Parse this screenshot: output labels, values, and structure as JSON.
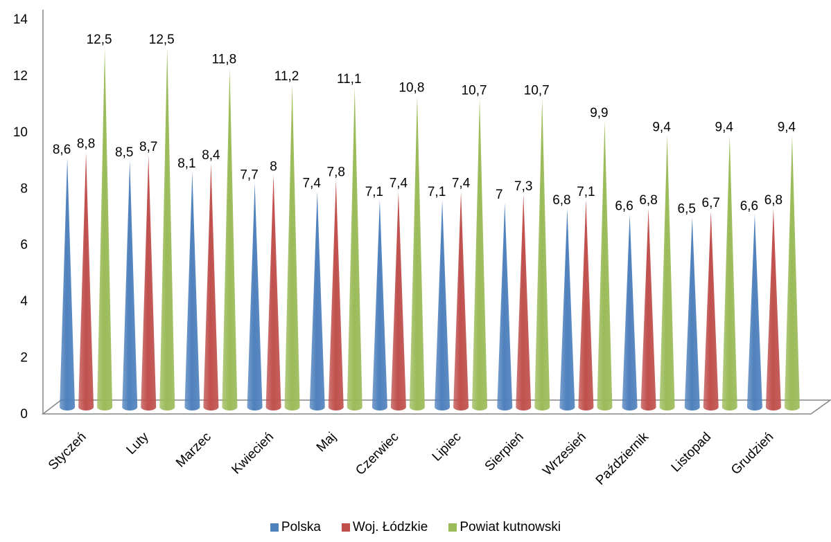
{
  "chart_data": {
    "type": "bar",
    "categories": [
      "Styczeń",
      "Luty",
      "Marzec",
      "Kwiecień",
      "Maj",
      "Czerwiec",
      "Lipiec",
      "Sierpień",
      "Wrzesień",
      "Październik",
      "Listopad",
      "Grudzień"
    ],
    "series": [
      {
        "name": "Polska",
        "color": "#4F81BD",
        "values": [
          8.6,
          8.5,
          8.1,
          7.7,
          7.4,
          7.1,
          7.1,
          7.0,
          6.8,
          6.6,
          6.5,
          6.6
        ],
        "labels": [
          "8,6",
          "8,5",
          "8,1",
          "7,7",
          "7,4",
          "7,1",
          "7,1",
          "7",
          "6,8",
          "6,6",
          "6,5",
          "6,6"
        ]
      },
      {
        "name": "Woj. Łódzkie",
        "color": "#C0504D",
        "values": [
          8.8,
          8.7,
          8.4,
          8.0,
          7.8,
          7.4,
          7.4,
          7.3,
          7.1,
          6.8,
          6.7,
          6.8
        ],
        "labels": [
          "8,8",
          "8,7",
          "8,4",
          "8",
          "7,8",
          "7,4",
          "7,4",
          "7,3",
          "7,1",
          "6,8",
          "6,7",
          "6,8"
        ]
      },
      {
        "name": "Powiat kutnowski",
        "color": "#9BBB59",
        "values": [
          12.5,
          12.5,
          11.8,
          11.2,
          11.1,
          10.8,
          10.7,
          10.7,
          9.9,
          9.4,
          9.4,
          9.4
        ],
        "labels": [
          "12,5",
          "12,5",
          "11,8",
          "11,2",
          "11,1",
          "10,8",
          "10,7",
          "10,7",
          "9,9",
          "9,4",
          "9,4",
          "9,4"
        ]
      }
    ],
    "ylim": [
      0,
      14
    ],
    "yticks": [
      "0",
      "2",
      "4",
      "6",
      "8",
      "10",
      "12",
      "14"
    ],
    "shape": "cone",
    "legend": "bottom"
  }
}
